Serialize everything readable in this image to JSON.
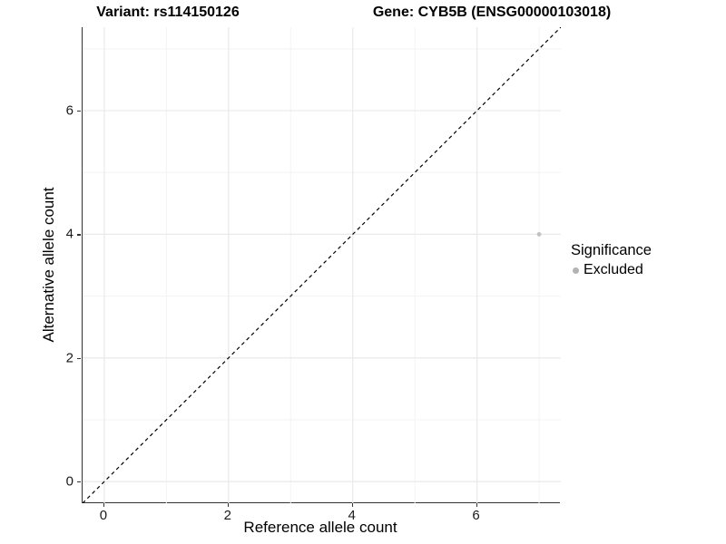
{
  "titles": {
    "left": "Variant: rs114150126",
    "right": "Gene: CYB5B (ENSG00000103018)"
  },
  "legend": {
    "title": "Significance",
    "items": [
      {
        "label": "Excluded",
        "color": "#b3b3b3"
      }
    ]
  },
  "chart_data": {
    "type": "scatter",
    "title_left": "Variant: rs114150126",
    "title_right": "Gene: CYB5B (ENSG00000103018)",
    "xlabel": "Reference allele count",
    "ylabel": "Alternative allele count",
    "xlim": [
      -0.35,
      7.35
    ],
    "ylim": [
      -0.35,
      7.35
    ],
    "x_ticks": [
      0,
      2,
      4,
      6
    ],
    "y_ticks": [
      0,
      2,
      4,
      6
    ],
    "x_minor_gridlines": [
      1,
      3,
      5,
      7
    ],
    "y_minor_gridlines": [
      1,
      3,
      5,
      7
    ],
    "grid": true,
    "legend_position": "right",
    "legend_title": "Significance",
    "series": [
      {
        "name": "Excluded",
        "color": "#c2c2c2",
        "point_radius": 2.4,
        "points": [
          {
            "x": 7,
            "y": 4
          }
        ]
      }
    ],
    "reference_line": {
      "type": "identity y=x",
      "style": "dashed",
      "color": "#000000"
    },
    "colors": {
      "major_gridline": "#e9e9e9",
      "minor_gridline": "#f3f3f3",
      "axis_line": "#333333",
      "background": "#ffffff"
    }
  }
}
